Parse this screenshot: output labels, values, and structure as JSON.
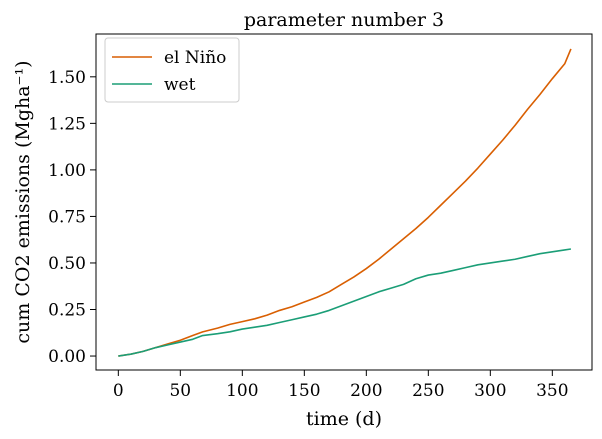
{
  "chart_data": {
    "type": "line",
    "title": "parameter number 3",
    "xlabel": "time (d)",
    "ylabel": "cum CO2 emissions (Mgha⁻¹)",
    "xlim": [
      -18,
      382
    ],
    "ylim": [
      -0.075,
      1.73
    ],
    "x_ticks": [
      0,
      50,
      100,
      150,
      200,
      250,
      300,
      350
    ],
    "y_ticks": [
      0.0,
      0.25,
      0.5,
      0.75,
      1.0,
      1.25,
      1.5
    ],
    "y_tick_labels": [
      "0.00",
      "0.25",
      "0.50",
      "0.75",
      "1.00",
      "1.25",
      "1.50"
    ],
    "legend_position": "upper-left",
    "grid": false,
    "series": [
      {
        "name": "el Niño",
        "color": "#d95f02",
        "x": [
          0,
          10,
          20,
          30,
          40,
          50,
          60,
          68,
          80,
          90,
          100,
          110,
          120,
          130,
          140,
          150,
          160,
          170,
          180,
          190,
          200,
          210,
          220,
          230,
          240,
          250,
          260,
          270,
          280,
          290,
          300,
          310,
          320,
          330,
          340,
          350,
          360,
          365
        ],
        "y": [
          0.0,
          0.01,
          0.025,
          0.045,
          0.065,
          0.085,
          0.11,
          0.13,
          0.15,
          0.17,
          0.185,
          0.2,
          0.22,
          0.245,
          0.265,
          0.29,
          0.315,
          0.345,
          0.385,
          0.425,
          0.47,
          0.52,
          0.575,
          0.63,
          0.685,
          0.745,
          0.81,
          0.875,
          0.94,
          1.01,
          1.085,
          1.16,
          1.24,
          1.325,
          1.405,
          1.49,
          1.57,
          1.65
        ]
      },
      {
        "name": "wet",
        "color": "#1b9e77",
        "x": [
          0,
          10,
          20,
          30,
          40,
          50,
          60,
          68,
          80,
          90,
          100,
          110,
          120,
          130,
          140,
          150,
          160,
          170,
          180,
          190,
          200,
          210,
          220,
          230,
          240,
          250,
          260,
          270,
          280,
          290,
          300,
          310,
          320,
          330,
          340,
          350,
          360,
          365
        ],
        "y": [
          0.0,
          0.01,
          0.025,
          0.045,
          0.06,
          0.075,
          0.09,
          0.11,
          0.12,
          0.13,
          0.145,
          0.155,
          0.165,
          0.18,
          0.195,
          0.21,
          0.225,
          0.245,
          0.27,
          0.295,
          0.32,
          0.345,
          0.365,
          0.385,
          0.415,
          0.435,
          0.445,
          0.46,
          0.475,
          0.49,
          0.5,
          0.51,
          0.52,
          0.535,
          0.55,
          0.56,
          0.57,
          0.575
        ]
      }
    ]
  }
}
